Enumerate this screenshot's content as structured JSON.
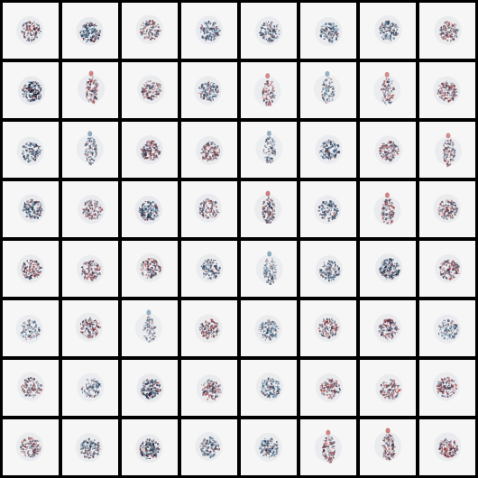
{
  "grid": {
    "rows": 8,
    "columns": 8,
    "border_color": "#000000",
    "tile_background": "#f6f6f6",
    "sample_palette": [
      "#1f2a44",
      "#3b6d8f",
      "#8a2a2a",
      "#5a4a5a",
      "#c44a4a",
      "#2b3a55",
      "#6a7a9a"
    ],
    "samples": [
      {
        "kind": "blob",
        "intensity": 0.6,
        "tint": "red"
      },
      {
        "kind": "blob",
        "intensity": 0.9,
        "tint": "blue"
      },
      {
        "kind": "blob",
        "intensity": 0.6,
        "tint": "red"
      },
      {
        "kind": "blob",
        "intensity": 0.7,
        "tint": "blue"
      },
      {
        "kind": "blob",
        "intensity": 0.7,
        "tint": "blue"
      },
      {
        "kind": "blob",
        "intensity": 0.6,
        "tint": "blue"
      },
      {
        "kind": "blob",
        "intensity": 0.6,
        "tint": "blue"
      },
      {
        "kind": "blob",
        "intensity": 0.6,
        "tint": "red"
      },
      {
        "kind": "blob",
        "intensity": 0.9,
        "tint": "dark"
      },
      {
        "kind": "figure",
        "intensity": 0.5,
        "tint": "red"
      },
      {
        "kind": "blob",
        "intensity": 0.6,
        "tint": "red"
      },
      {
        "kind": "blob",
        "intensity": 0.7,
        "tint": "blue"
      },
      {
        "kind": "figure",
        "intensity": 0.4,
        "tint": "red"
      },
      {
        "kind": "figure",
        "intensity": 0.3,
        "tint": "blue"
      },
      {
        "kind": "figure",
        "intensity": 0.4,
        "tint": "red"
      },
      {
        "kind": "blob",
        "intensity": 0.7,
        "tint": "red"
      },
      {
        "kind": "blob",
        "intensity": 0.6,
        "tint": "blue"
      },
      {
        "kind": "figure",
        "intensity": 0.4,
        "tint": "blue"
      },
      {
        "kind": "blob",
        "intensity": 0.8,
        "tint": "red"
      },
      {
        "kind": "blob",
        "intensity": 0.6,
        "tint": "red"
      },
      {
        "kind": "figure",
        "intensity": 0.3,
        "tint": "blue"
      },
      {
        "kind": "blob",
        "intensity": 0.7,
        "tint": "blue"
      },
      {
        "kind": "blob",
        "intensity": 0.7,
        "tint": "red"
      },
      {
        "kind": "figure",
        "intensity": 0.4,
        "tint": "red"
      },
      {
        "kind": "blob",
        "intensity": 0.8,
        "tint": "blue"
      },
      {
        "kind": "blob",
        "intensity": 0.5,
        "tint": "red"
      },
      {
        "kind": "blob",
        "intensity": 0.9,
        "tint": "blue"
      },
      {
        "kind": "blob",
        "intensity": 0.5,
        "tint": "red"
      },
      {
        "kind": "figure",
        "intensity": 0.6,
        "tint": "red"
      },
      {
        "kind": "blob",
        "intensity": 0.7,
        "tint": "blue"
      },
      {
        "kind": "figure",
        "intensity": 0.5,
        "tint": "red"
      },
      {
        "kind": "blob",
        "intensity": 0.6,
        "tint": "red"
      },
      {
        "kind": "blob",
        "intensity": 0.6,
        "tint": "red"
      },
      {
        "kind": "blob",
        "intensity": 0.7,
        "tint": "red"
      },
      {
        "kind": "blob",
        "intensity": 0.6,
        "tint": "red"
      },
      {
        "kind": "blob",
        "intensity": 0.6,
        "tint": "blue"
      },
      {
        "kind": "figure",
        "intensity": 0.4,
        "tint": "blue"
      },
      {
        "kind": "blob",
        "intensity": 0.7,
        "tint": "blue"
      },
      {
        "kind": "blob",
        "intensity": 0.9,
        "tint": "blue"
      },
      {
        "kind": "blob",
        "intensity": 0.7,
        "tint": "red"
      },
      {
        "kind": "blob",
        "intensity": 0.4,
        "tint": "blue"
      },
      {
        "kind": "blob",
        "intensity": 0.6,
        "tint": "red"
      },
      {
        "kind": "figure",
        "intensity": 0.3,
        "tint": "blue"
      },
      {
        "kind": "blob",
        "intensity": 0.6,
        "tint": "red"
      },
      {
        "kind": "blob",
        "intensity": 0.6,
        "tint": "blue"
      },
      {
        "kind": "blob",
        "intensity": 0.6,
        "tint": "red"
      },
      {
        "kind": "blob",
        "intensity": 0.7,
        "tint": "red"
      },
      {
        "kind": "blob",
        "intensity": 0.5,
        "tint": "blue"
      },
      {
        "kind": "blob",
        "intensity": 0.5,
        "tint": "red"
      },
      {
        "kind": "blob",
        "intensity": 0.4,
        "tint": "blue"
      },
      {
        "kind": "blob",
        "intensity": 0.9,
        "tint": "blue"
      },
      {
        "kind": "blob",
        "intensity": 0.6,
        "tint": "red"
      },
      {
        "kind": "blob",
        "intensity": 0.6,
        "tint": "blue"
      },
      {
        "kind": "blob",
        "intensity": 0.6,
        "tint": "red"
      },
      {
        "kind": "blob",
        "intensity": 0.6,
        "tint": "red"
      },
      {
        "kind": "blob",
        "intensity": 0.7,
        "tint": "red"
      },
      {
        "kind": "blob",
        "intensity": 0.6,
        "tint": "red"
      },
      {
        "kind": "blob",
        "intensity": 0.6,
        "tint": "blue"
      },
      {
        "kind": "blob",
        "intensity": 0.8,
        "tint": "dark"
      },
      {
        "kind": "blob",
        "intensity": 0.6,
        "tint": "blue"
      },
      {
        "kind": "blob",
        "intensity": 0.6,
        "tint": "blue"
      },
      {
        "kind": "figure",
        "intensity": 0.5,
        "tint": "red"
      },
      {
        "kind": "figure",
        "intensity": 0.6,
        "tint": "red"
      },
      {
        "kind": "blob",
        "intensity": 0.7,
        "tint": "red"
      }
    ]
  }
}
